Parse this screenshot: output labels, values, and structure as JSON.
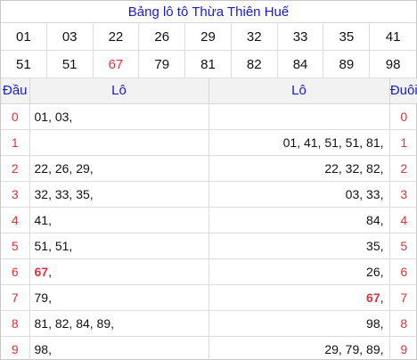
{
  "title": "Bảng lô tô Thừa Thiên Huế",
  "numbers": [
    {
      "v": "01"
    },
    {
      "v": "03"
    },
    {
      "v": "22"
    },
    {
      "v": "26"
    },
    {
      "v": "29"
    },
    {
      "v": "32"
    },
    {
      "v": "33"
    },
    {
      "v": "35"
    },
    {
      "v": "41"
    },
    {
      "v": "51"
    },
    {
      "v": "51"
    },
    {
      "v": "67",
      "red": true
    },
    {
      "v": "79"
    },
    {
      "v": "81"
    },
    {
      "v": "82"
    },
    {
      "v": "84"
    },
    {
      "v": "89"
    },
    {
      "v": "98"
    }
  ],
  "headers": {
    "dau": "Đầu",
    "lo_left": "Lô",
    "lo_right": "Lô",
    "duoi": "Đuôi"
  },
  "highlight_color": "#d8343c",
  "rows": [
    {
      "dau": "0",
      "left": [
        {
          "t": "01, 03,"
        }
      ],
      "right": [],
      "duoi": "0"
    },
    {
      "dau": "1",
      "left": [],
      "right": [
        {
          "t": "01, 41, 51, 51, 81,"
        }
      ],
      "duoi": "1"
    },
    {
      "dau": "2",
      "left": [
        {
          "t": "22, 26, 29,"
        }
      ],
      "right": [
        {
          "t": "22, 32, 82,"
        }
      ],
      "duoi": "2"
    },
    {
      "dau": "3",
      "left": [
        {
          "t": "32, 33, 35,"
        }
      ],
      "right": [
        {
          "t": "03, 33,"
        }
      ],
      "duoi": "3"
    },
    {
      "dau": "4",
      "left": [
        {
          "t": "41,"
        }
      ],
      "right": [
        {
          "t": "84,"
        }
      ],
      "duoi": "4"
    },
    {
      "dau": "5",
      "left": [
        {
          "t": "51, 51,"
        }
      ],
      "right": [
        {
          "t": "35,"
        }
      ],
      "duoi": "5"
    },
    {
      "dau": "6",
      "left": [
        {
          "t": "67",
          "hl": true
        },
        {
          "t": ","
        }
      ],
      "right": [
        {
          "t": "26,"
        }
      ],
      "duoi": "6"
    },
    {
      "dau": "7",
      "left": [
        {
          "t": "79,"
        }
      ],
      "right": [
        {
          "t": "67",
          "hl": true
        },
        {
          "t": ","
        }
      ],
      "duoi": "7"
    },
    {
      "dau": "8",
      "left": [
        {
          "t": "81, 82, 84, 89,"
        }
      ],
      "right": [
        {
          "t": "98,"
        }
      ],
      "duoi": "8"
    },
    {
      "dau": "9",
      "left": [
        {
          "t": "98,"
        }
      ],
      "right": [
        {
          "t": "29, 79, 89,"
        }
      ],
      "duoi": "9"
    }
  ]
}
